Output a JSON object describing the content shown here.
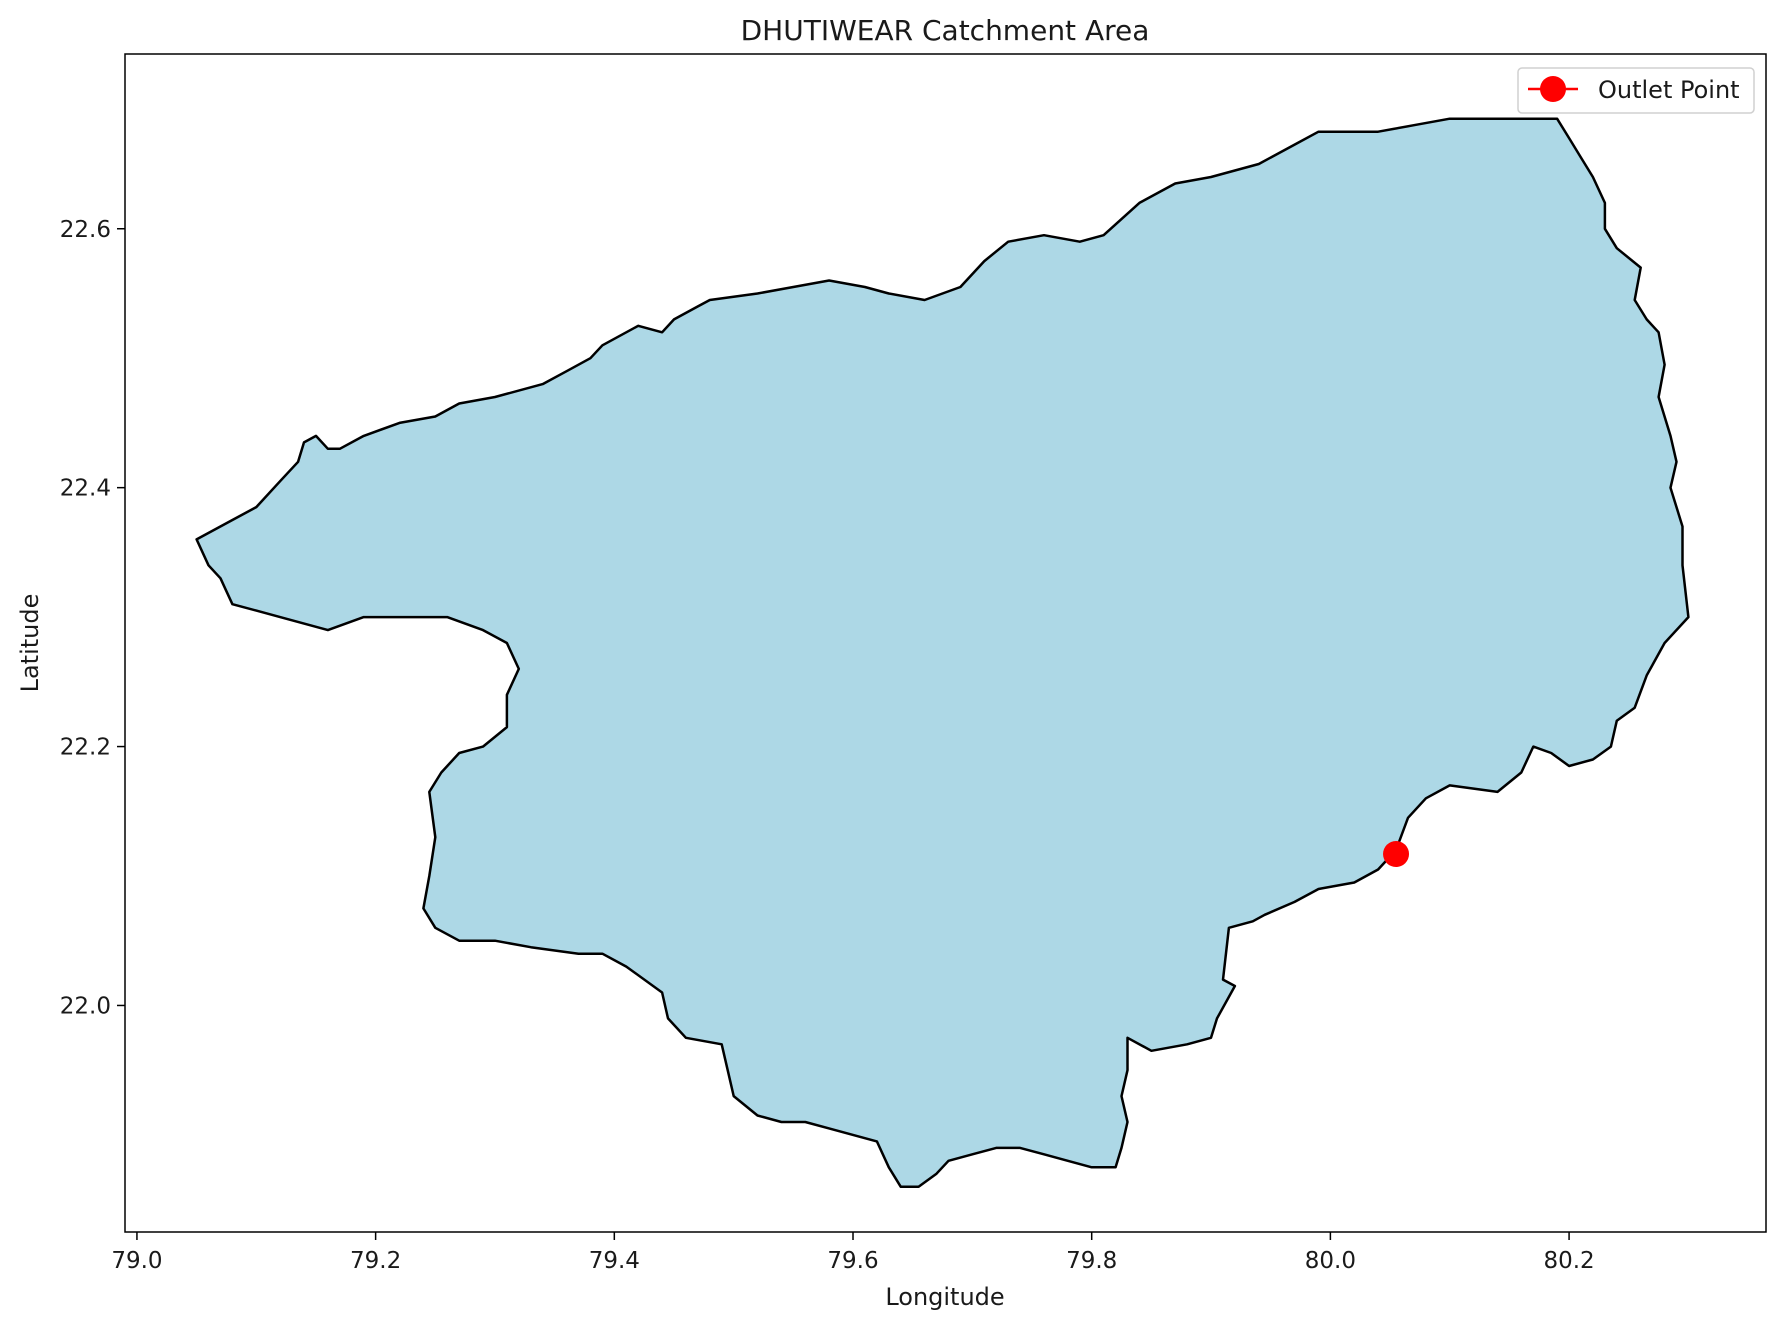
{
  "chart_data": {
    "type": "map",
    "title": "DHUTIWEAR Catchment Area",
    "xlabel": "Longitude",
    "ylabel": "Latitude",
    "xlim": [
      78.99,
      80.365
    ],
    "ylim": [
      21.825,
      22.735
    ],
    "x_ticks": [
      79.0,
      79.2,
      79.4,
      79.6,
      79.8,
      80.0,
      80.2
    ],
    "x_tick_labels": [
      "79.0",
      "79.2",
      "79.4",
      "79.6",
      "79.8",
      "80.0",
      "80.2"
    ],
    "y_ticks": [
      22.0,
      22.2,
      22.4,
      22.6
    ],
    "y_tick_labels": [
      "22.0",
      "22.2",
      "22.4",
      "22.6"
    ],
    "grid": false,
    "legend_position": "top-right",
    "catchment": {
      "fill": "#add8e6",
      "edge": "#000000",
      "boundary": [
        [
          79.05,
          22.36
        ],
        [
          79.08,
          22.375
        ],
        [
          79.1,
          22.385
        ],
        [
          79.12,
          22.405
        ],
        [
          79.135,
          22.42
        ],
        [
          79.14,
          22.435
        ],
        [
          79.15,
          22.44
        ],
        [
          79.16,
          22.43
        ],
        [
          79.17,
          22.43
        ],
        [
          79.19,
          22.44
        ],
        [
          79.22,
          22.45
        ],
        [
          79.25,
          22.455
        ],
        [
          79.27,
          22.465
        ],
        [
          79.3,
          22.47
        ],
        [
          79.34,
          22.48
        ],
        [
          79.36,
          22.49
        ],
        [
          79.38,
          22.5
        ],
        [
          79.39,
          22.51
        ],
        [
          79.42,
          22.525
        ],
        [
          79.44,
          22.52
        ],
        [
          79.45,
          22.53
        ],
        [
          79.47,
          22.54
        ],
        [
          79.48,
          22.545
        ],
        [
          79.52,
          22.55
        ],
        [
          79.55,
          22.555
        ],
        [
          79.58,
          22.56
        ],
        [
          79.61,
          22.555
        ],
        [
          79.63,
          22.55
        ],
        [
          79.66,
          22.545
        ],
        [
          79.69,
          22.555
        ],
        [
          79.71,
          22.575
        ],
        [
          79.73,
          22.59
        ],
        [
          79.76,
          22.595
        ],
        [
          79.79,
          22.59
        ],
        [
          79.81,
          22.595
        ],
        [
          79.84,
          22.62
        ],
        [
          79.87,
          22.635
        ],
        [
          79.9,
          22.64
        ],
        [
          79.92,
          22.645
        ],
        [
          79.94,
          22.65
        ],
        [
          79.97,
          22.665
        ],
        [
          79.99,
          22.675
        ],
        [
          80.01,
          22.675
        ],
        [
          80.04,
          22.675
        ],
        [
          80.07,
          22.68
        ],
        [
          80.1,
          22.685
        ],
        [
          80.13,
          22.685
        ],
        [
          80.16,
          22.685
        ],
        [
          80.19,
          22.685
        ],
        [
          80.2,
          22.67
        ],
        [
          80.21,
          22.655
        ],
        [
          80.22,
          22.64
        ],
        [
          80.23,
          22.62
        ],
        [
          80.23,
          22.6
        ],
        [
          80.24,
          22.585
        ],
        [
          80.26,
          22.57
        ],
        [
          80.255,
          22.545
        ],
        [
          80.265,
          22.53
        ],
        [
          80.275,
          22.52
        ],
        [
          80.28,
          22.495
        ],
        [
          80.275,
          22.47
        ],
        [
          80.285,
          22.44
        ],
        [
          80.29,
          22.42
        ],
        [
          80.285,
          22.4
        ],
        [
          80.295,
          22.37
        ],
        [
          80.295,
          22.34
        ],
        [
          80.3,
          22.3
        ],
        [
          80.28,
          22.28
        ],
        [
          80.265,
          22.255
        ],
        [
          80.255,
          22.23
        ],
        [
          80.24,
          22.22
        ],
        [
          80.235,
          22.2
        ],
        [
          80.22,
          22.19
        ],
        [
          80.2,
          22.185
        ],
        [
          80.185,
          22.195
        ],
        [
          80.17,
          22.2
        ],
        [
          80.16,
          22.18
        ],
        [
          80.14,
          22.165
        ],
        [
          80.1,
          22.17
        ],
        [
          80.08,
          22.16
        ],
        [
          80.065,
          22.145
        ],
        [
          80.055,
          22.12
        ],
        [
          80.04,
          22.105
        ],
        [
          80.02,
          22.095
        ],
        [
          79.99,
          22.09
        ],
        [
          79.97,
          22.08
        ],
        [
          79.945,
          22.07
        ],
        [
          79.935,
          22.065
        ],
        [
          79.915,
          22.06
        ],
        [
          79.91,
          22.02
        ],
        [
          79.92,
          22.015
        ],
        [
          79.905,
          21.99
        ],
        [
          79.9,
          21.975
        ],
        [
          79.88,
          21.97
        ],
        [
          79.85,
          21.965
        ],
        [
          79.83,
          21.975
        ],
        [
          79.83,
          21.95
        ],
        [
          79.825,
          21.93
        ],
        [
          79.83,
          21.91
        ],
        [
          79.825,
          21.89
        ],
        [
          79.82,
          21.875
        ],
        [
          79.8,
          21.875
        ],
        [
          79.78,
          21.88
        ],
        [
          79.76,
          21.885
        ],
        [
          79.74,
          21.89
        ],
        [
          79.72,
          21.89
        ],
        [
          79.7,
          21.885
        ],
        [
          79.68,
          21.88
        ],
        [
          79.67,
          21.87
        ],
        [
          79.655,
          21.86
        ],
        [
          79.64,
          21.86
        ],
        [
          79.63,
          21.875
        ],
        [
          79.62,
          21.895
        ],
        [
          79.6,
          21.9
        ],
        [
          79.58,
          21.905
        ],
        [
          79.56,
          21.91
        ],
        [
          79.54,
          21.91
        ],
        [
          79.52,
          21.915
        ],
        [
          79.5,
          21.93
        ],
        [
          79.495,
          21.95
        ],
        [
          79.49,
          21.97
        ],
        [
          79.46,
          21.975
        ],
        [
          79.445,
          21.99
        ],
        [
          79.44,
          22.01
        ],
        [
          79.41,
          22.03
        ],
        [
          79.39,
          22.04
        ],
        [
          79.37,
          22.04
        ],
        [
          79.33,
          22.045
        ],
        [
          79.3,
          22.05
        ],
        [
          79.27,
          22.05
        ],
        [
          79.25,
          22.06
        ],
        [
          79.24,
          22.075
        ],
        [
          79.245,
          22.1
        ],
        [
          79.25,
          22.13
        ],
        [
          79.245,
          22.165
        ],
        [
          79.255,
          22.18
        ],
        [
          79.27,
          22.195
        ],
        [
          79.29,
          22.2
        ],
        [
          79.31,
          22.215
        ],
        [
          79.31,
          22.24
        ],
        [
          79.32,
          22.26
        ],
        [
          79.31,
          22.28
        ],
        [
          79.29,
          22.29
        ],
        [
          79.26,
          22.3
        ],
        [
          79.24,
          22.3
        ],
        [
          79.21,
          22.3
        ],
        [
          79.19,
          22.3
        ],
        [
          79.16,
          22.29
        ],
        [
          79.14,
          22.295
        ],
        [
          79.12,
          22.3
        ],
        [
          79.1,
          22.305
        ],
        [
          79.08,
          22.31
        ],
        [
          79.075,
          22.32
        ],
        [
          79.07,
          22.33
        ],
        [
          79.06,
          22.34
        ]
      ]
    },
    "outlet_point": {
      "lon": 80.055,
      "lat": 22.117,
      "color": "#ff0000"
    },
    "legend": [
      {
        "label": "Outlet Point",
        "marker": "circle",
        "color": "#ff0000"
      }
    ]
  }
}
